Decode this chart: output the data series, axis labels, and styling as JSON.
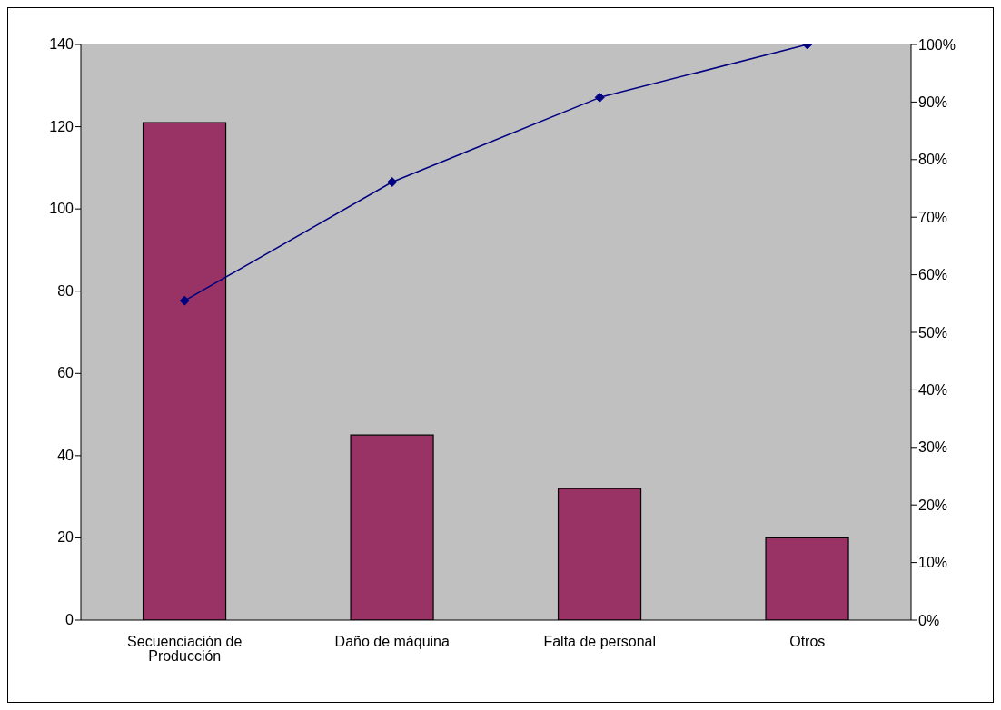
{
  "chart_data": {
    "type": "bar",
    "categories": [
      "Secuenciación de Producción",
      "Daño de máquina",
      "Falta de personal",
      "Otros"
    ],
    "series": [
      {
        "color": "#993366",
        "values": [
          121,
          45,
          32,
          20
        ]
      },
      {
        "type": "line",
        "axis": "y2",
        "color": "#000080",
        "marker": "diamond",
        "values": [
          55.5,
          76.1,
          90.8,
          100
        ]
      }
    ],
    "ylim": [
      0,
      140
    ],
    "yticks": [
      0,
      20,
      40,
      60,
      80,
      100,
      120,
      140
    ],
    "y2lim": [
      0,
      100
    ],
    "y2ticks": [
      {
        "value": 0,
        "label": "0%"
      },
      {
        "value": 10,
        "label": "10%"
      },
      {
        "value": 20,
        "label": "20%"
      },
      {
        "value": 30,
        "label": "30%"
      },
      {
        "value": 40,
        "label": "40%"
      },
      {
        "value": 50,
        "label": "50%"
      },
      {
        "value": 60,
        "label": "60%"
      },
      {
        "value": 70,
        "label": "70%"
      },
      {
        "value": 80,
        "label": "80%"
      },
      {
        "value": 90,
        "label": "90%"
      },
      {
        "value": 100,
        "label": "100%"
      }
    ],
    "grid": false
  }
}
